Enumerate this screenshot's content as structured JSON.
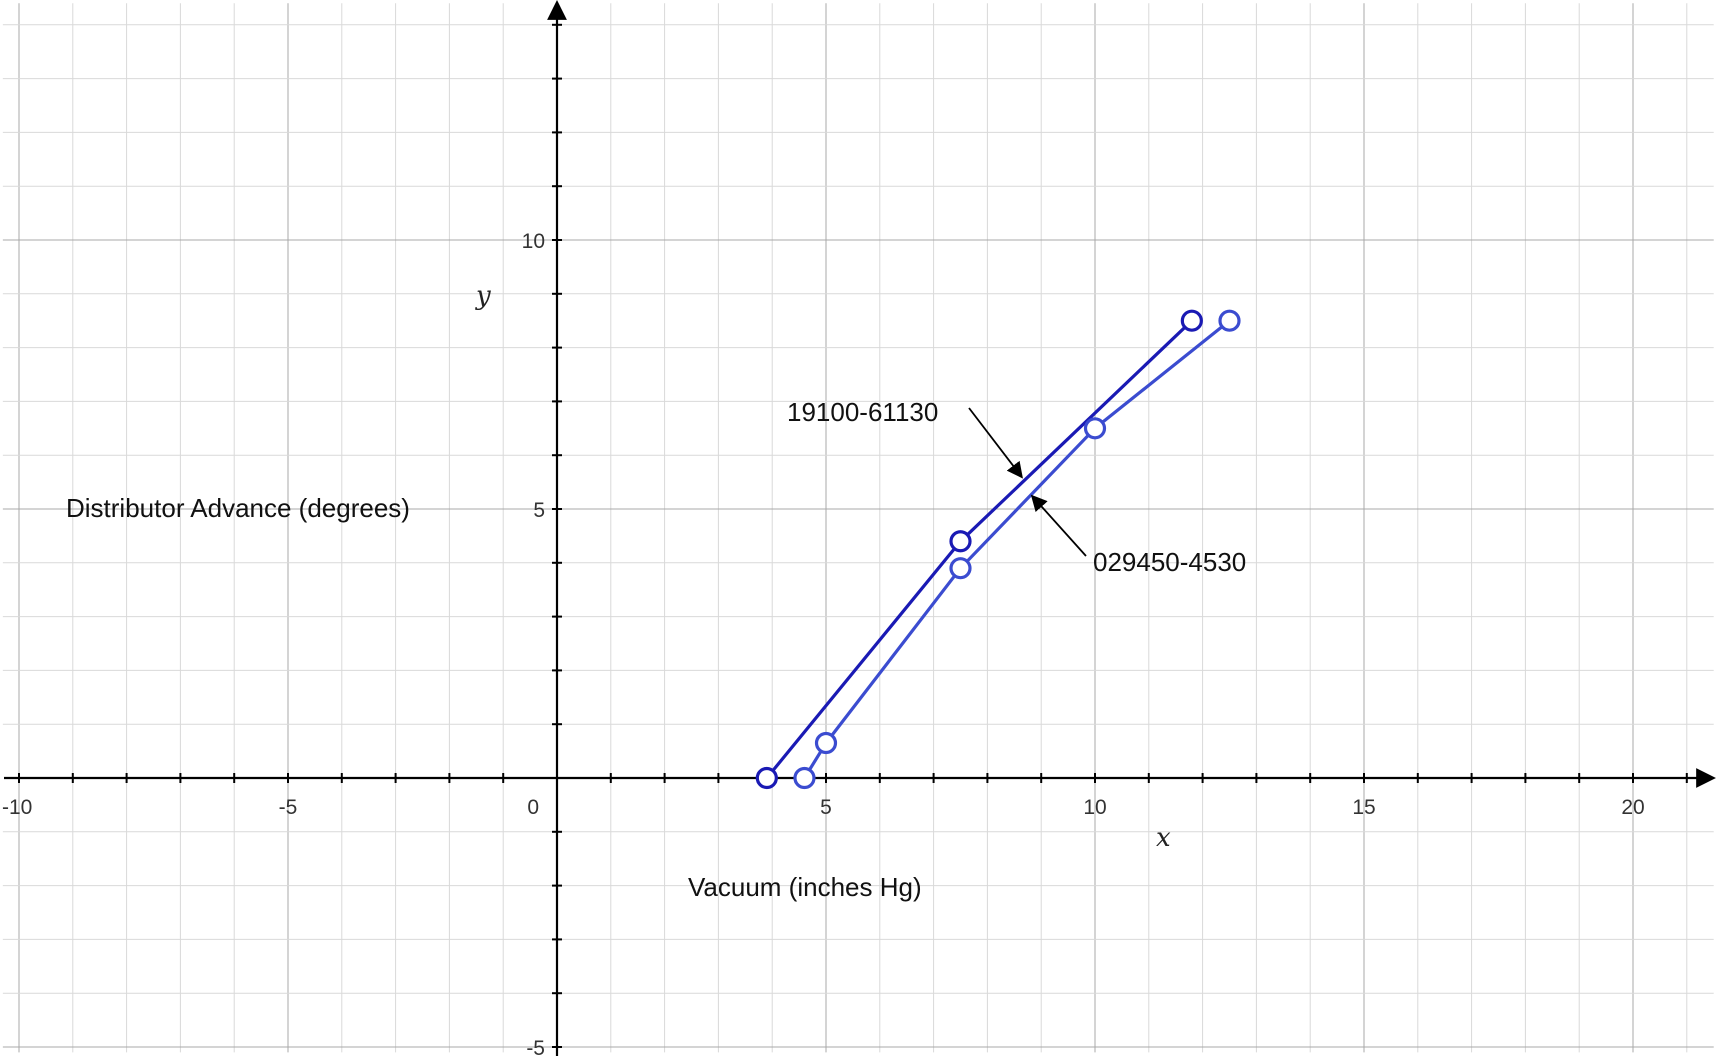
{
  "chart_data": {
    "type": "line",
    "xlim": [
      -10.3,
      21.5
    ],
    "ylim": [
      -5.1,
      14.4
    ],
    "grid": true,
    "grid_minor_step": 1,
    "grid_major_step": 5,
    "x_ticks": [
      -10,
      -5,
      0,
      5,
      10,
      15,
      20
    ],
    "y_ticks": [
      -5,
      5,
      10
    ],
    "x_tick_labels": [
      "-10",
      "-5",
      "0",
      "5",
      "10",
      "15",
      "20"
    ],
    "y_tick_labels": [
      "-5",
      "5",
      "10"
    ],
    "x_var": "x",
    "y_var": "y",
    "annotations": {
      "y_axis_text": "Distributor Advance (degrees)",
      "x_axis_text": "Vacuum (inches Hg)"
    },
    "series": [
      {
        "name": "19100-61130",
        "color": "#1a1ab4",
        "x": [
          3.9,
          7.5,
          11.8
        ],
        "y": [
          0,
          4.4,
          8.5
        ]
      },
      {
        "name": "029450-4530",
        "color": "#3b4cd0",
        "x": [
          4.6,
          5.0,
          7.5,
          10.0,
          12.5
        ],
        "y": [
          0,
          0.65,
          3.9,
          6.5,
          8.5
        ]
      }
    ]
  }
}
